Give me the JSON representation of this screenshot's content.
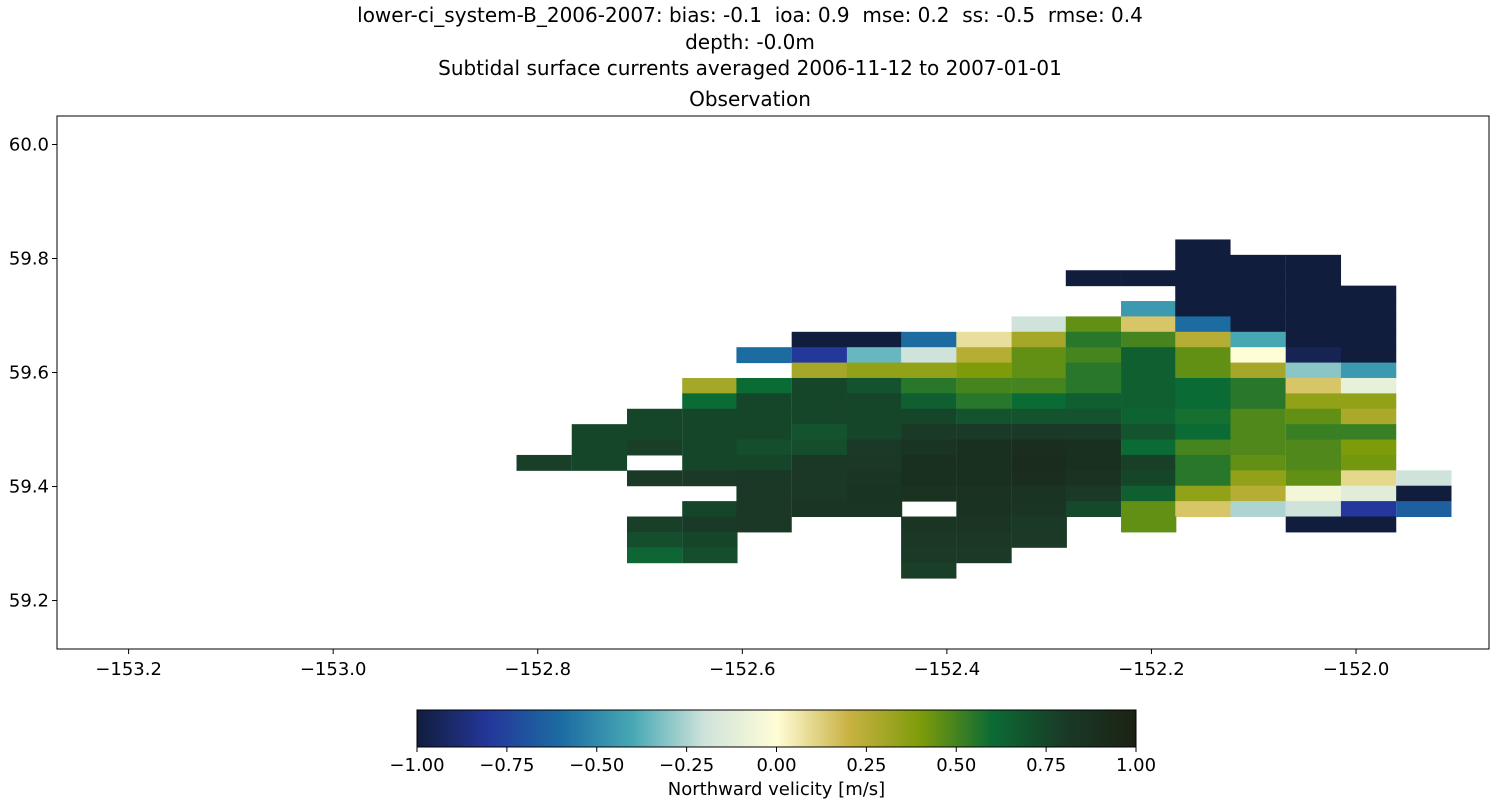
{
  "title": {
    "line1": "lower-ci_system-B_2006-2007: bias: -0.1  ioa: 0.9  mse: 0.2  ss: -0.5  rmse: 0.4",
    "line2": "depth: -0.0m",
    "line3": "Subtidal surface currents averaged 2006-11-12 to 2007-01-01",
    "subplot": "Observation"
  },
  "chart_data": {
    "type": "heatmap",
    "title": "Observation",
    "xlabel": "",
    "ylabel": "",
    "xlim": [
      -153.27,
      -151.87
    ],
    "ylim": [
      59.115,
      60.05
    ],
    "x_ticks": [
      -153.2,
      -153.0,
      -152.8,
      -152.6,
      -152.4,
      -152.2,
      -152.0
    ],
    "x_tick_labels": [
      "−153.2",
      "−153.0",
      "−152.8",
      "−152.6",
      "−152.4",
      "−152.2",
      "−152.0"
    ],
    "y_ticks": [
      59.2,
      59.4,
      59.6,
      59.8,
      60.0
    ],
    "y_tick_labels": [
      "59.2",
      "59.4",
      "59.6",
      "59.8",
      "60.0"
    ],
    "cell_width_deg": 0.0535,
    "cell_height_deg": 0.02685,
    "colorbar": {
      "label": "Northward velicity [m/s]",
      "vmin": -1.0,
      "vmax": 1.0,
      "ticks": [
        -1.0,
        -0.75,
        -0.5,
        -0.25,
        0.0,
        0.25,
        0.5,
        0.75,
        1.0
      ],
      "tick_labels": [
        "−1.00",
        "−0.75",
        "−0.50",
        "−0.25",
        "0.00",
        "0.25",
        "0.50",
        "0.75",
        "1.00"
      ],
      "colormap": "delta",
      "stops": [
        "#111d3d",
        "#24379a",
        "#1c6ca2",
        "#47a8b4",
        "#cfe3da",
        "#fffdd7",
        "#c9b243",
        "#7e9c0a",
        "#0b6b34",
        "#1a3a27",
        "#1b2214"
      ]
    },
    "rows": [
      {
        "lat": 59.82,
        "cells": [
          {
            "lon": -152.15,
            "v": -1.0
          }
        ]
      },
      {
        "lat": 59.793,
        "cells": [
          {
            "lon": -152.15,
            "v": -1.0
          },
          {
            "lon": -152.096,
            "v": -1.0
          },
          {
            "lon": -152.042,
            "v": -1.0
          }
        ]
      },
      {
        "lat": 59.766,
        "cells": [
          {
            "lon": -152.257,
            "v": -1.0
          },
          {
            "lon": -152.203,
            "v": -1.0
          },
          {
            "lon": -152.15,
            "v": -1.0
          },
          {
            "lon": -152.096,
            "v": -1.0
          },
          {
            "lon": -152.042,
            "v": -1.0
          }
        ]
      },
      {
        "lat": 59.739,
        "cells": [
          {
            "lon": -152.15,
            "v": -1.0
          },
          {
            "lon": -152.096,
            "v": -1.0
          },
          {
            "lon": -152.042,
            "v": -1.0
          },
          {
            "lon": -151.988,
            "v": -1.0
          }
        ]
      },
      {
        "lat": 59.712,
        "cells": [
          {
            "lon": -152.203,
            "v": -0.45
          },
          {
            "lon": -152.15,
            "v": -1.0
          },
          {
            "lon": -152.096,
            "v": -1.0
          },
          {
            "lon": -152.042,
            "v": -1.0
          },
          {
            "lon": -151.988,
            "v": -1.0
          }
        ]
      },
      {
        "lat": 59.685,
        "cells": [
          {
            "lon": -152.31,
            "v": -0.2
          },
          {
            "lon": -152.257,
            "v": 0.45
          },
          {
            "lon": -152.203,
            "v": 0.15
          },
          {
            "lon": -152.15,
            "v": -0.6
          },
          {
            "lon": -152.096,
            "v": -1.0
          },
          {
            "lon": -152.042,
            "v": -1.0
          },
          {
            "lon": -151.988,
            "v": -1.0
          }
        ]
      },
      {
        "lat": 59.658,
        "cells": [
          {
            "lon": -152.525,
            "v": -1.0
          },
          {
            "lon": -152.471,
            "v": -1.0
          },
          {
            "lon": -152.418,
            "v": -0.6
          },
          {
            "lon": -152.364,
            "v": 0.08
          },
          {
            "lon": -152.31,
            "v": 0.3
          },
          {
            "lon": -152.257,
            "v": 0.55
          },
          {
            "lon": -152.203,
            "v": 0.5
          },
          {
            "lon": -152.15,
            "v": 0.25
          },
          {
            "lon": -152.096,
            "v": -0.4
          },
          {
            "lon": -152.042,
            "v": -1.0
          },
          {
            "lon": -151.988,
            "v": -1.0
          }
        ]
      },
      {
        "lat": 59.631,
        "cells": [
          {
            "lon": -152.579,
            "v": -0.6
          },
          {
            "lon": -152.525,
            "v": -0.8
          },
          {
            "lon": -152.471,
            "v": -0.35
          },
          {
            "lon": -152.418,
            "v": -0.2
          },
          {
            "lon": -152.364,
            "v": 0.25
          },
          {
            "lon": -152.31,
            "v": 0.45
          },
          {
            "lon": -152.257,
            "v": 0.5
          },
          {
            "lon": -152.203,
            "v": 0.65
          },
          {
            "lon": -152.15,
            "v": 0.45
          },
          {
            "lon": -152.096,
            "v": 0.0
          },
          {
            "lon": -152.042,
            "v": -0.95
          },
          {
            "lon": -151.988,
            "v": -1.0
          }
        ]
      },
      {
        "lat": 59.604,
        "cells": [
          {
            "lon": -152.525,
            "v": 0.3
          },
          {
            "lon": -152.471,
            "v": 0.35
          },
          {
            "lon": -152.418,
            "v": 0.35
          },
          {
            "lon": -152.364,
            "v": 0.4
          },
          {
            "lon": -152.31,
            "v": 0.45
          },
          {
            "lon": -152.257,
            "v": 0.55
          },
          {
            "lon": -152.203,
            "v": 0.65
          },
          {
            "lon": -152.15,
            "v": 0.45
          },
          {
            "lon": -152.096,
            "v": 0.3
          },
          {
            "lon": -152.042,
            "v": -0.3
          },
          {
            "lon": -151.988,
            "v": -0.45
          }
        ]
      },
      {
        "lat": 59.577,
        "cells": [
          {
            "lon": -152.632,
            "v": 0.3
          },
          {
            "lon": -152.579,
            "v": 0.6
          },
          {
            "lon": -152.525,
            "v": 0.75
          },
          {
            "lon": -152.471,
            "v": 0.7
          },
          {
            "lon": -152.418,
            "v": 0.55
          },
          {
            "lon": -152.364,
            "v": 0.5
          },
          {
            "lon": -152.31,
            "v": 0.5
          },
          {
            "lon": -152.257,
            "v": 0.55
          },
          {
            "lon": -152.203,
            "v": 0.65
          },
          {
            "lon": -152.15,
            "v": 0.6
          },
          {
            "lon": -152.096,
            "v": 0.55
          },
          {
            "lon": -152.042,
            "v": 0.15
          },
          {
            "lon": -151.988,
            "v": -0.1
          }
        ]
      },
      {
        "lat": 59.55,
        "cells": [
          {
            "lon": -152.632,
            "v": 0.6
          },
          {
            "lon": -152.579,
            "v": 0.75
          },
          {
            "lon": -152.525,
            "v": 0.75
          },
          {
            "lon": -152.471,
            "v": 0.75
          },
          {
            "lon": -152.418,
            "v": 0.65
          },
          {
            "lon": -152.364,
            "v": 0.55
          },
          {
            "lon": -152.31,
            "v": 0.6
          },
          {
            "lon": -152.257,
            "v": 0.65
          },
          {
            "lon": -152.203,
            "v": 0.65
          },
          {
            "lon": -152.15,
            "v": 0.6
          },
          {
            "lon": -152.096,
            "v": 0.55
          },
          {
            "lon": -152.042,
            "v": 0.35
          },
          {
            "lon": -151.988,
            "v": 0.35
          }
        ]
      },
      {
        "lat": 59.523,
        "cells": [
          {
            "lon": -152.686,
            "v": 0.75
          },
          {
            "lon": -152.632,
            "v": 0.75
          },
          {
            "lon": -152.579,
            "v": 0.75
          },
          {
            "lon": -152.525,
            "v": 0.75
          },
          {
            "lon": -152.471,
            "v": 0.75
          },
          {
            "lon": -152.418,
            "v": 0.75
          },
          {
            "lon": -152.364,
            "v": 0.7
          },
          {
            "lon": -152.31,
            "v": 0.7
          },
          {
            "lon": -152.257,
            "v": 0.7
          },
          {
            "lon": -152.203,
            "v": 0.63
          },
          {
            "lon": -152.15,
            "v": 0.58
          },
          {
            "lon": -152.096,
            "v": 0.48
          },
          {
            "lon": -152.042,
            "v": 0.45
          },
          {
            "lon": -151.988,
            "v": 0.28
          }
        ]
      },
      {
        "lat": 59.496,
        "cells": [
          {
            "lon": -152.74,
            "v": 0.75
          },
          {
            "lon": -152.686,
            "v": 0.75
          },
          {
            "lon": -152.632,
            "v": 0.75
          },
          {
            "lon": -152.579,
            "v": 0.75
          },
          {
            "lon": -152.525,
            "v": 0.7
          },
          {
            "lon": -152.471,
            "v": 0.75
          },
          {
            "lon": -152.418,
            "v": 0.8
          },
          {
            "lon": -152.364,
            "v": 0.8
          },
          {
            "lon": -152.31,
            "v": 0.8
          },
          {
            "lon": -152.257,
            "v": 0.8
          },
          {
            "lon": -152.203,
            "v": 0.7
          },
          {
            "lon": -152.15,
            "v": 0.6
          },
          {
            "lon": -152.096,
            "v": 0.48
          },
          {
            "lon": -152.042,
            "v": 0.52
          },
          {
            "lon": -151.988,
            "v": 0.52
          }
        ]
      },
      {
        "lat": 59.469,
        "cells": [
          {
            "lon": -152.74,
            "v": 0.75
          },
          {
            "lon": -152.686,
            "v": 0.78
          },
          {
            "lon": -152.632,
            "v": 0.75
          },
          {
            "lon": -152.579,
            "v": 0.72
          },
          {
            "lon": -152.525,
            "v": 0.72
          },
          {
            "lon": -152.471,
            "v": 0.8
          },
          {
            "lon": -152.418,
            "v": 0.85
          },
          {
            "lon": -152.364,
            "v": 0.88
          },
          {
            "lon": -152.31,
            "v": 0.9
          },
          {
            "lon": -152.257,
            "v": 0.88
          },
          {
            "lon": -152.203,
            "v": 0.6
          },
          {
            "lon": -152.15,
            "v": 0.5
          },
          {
            "lon": -152.096,
            "v": 0.48
          },
          {
            "lon": -152.042,
            "v": 0.48
          },
          {
            "lon": -151.988,
            "v": 0.4
          }
        ]
      },
      {
        "lat": 59.442,
        "cells": [
          {
            "lon": -152.794,
            "v": 0.78
          },
          {
            "lon": -152.74,
            "v": 0.75
          },
          {
            "lon": -152.632,
            "v": 0.75
          },
          {
            "lon": -152.579,
            "v": 0.75
          },
          {
            "lon": -152.525,
            "v": 0.82
          },
          {
            "lon": -152.471,
            "v": 0.82
          },
          {
            "lon": -152.418,
            "v": 0.88
          },
          {
            "lon": -152.364,
            "v": 0.88
          },
          {
            "lon": -152.31,
            "v": 0.92
          },
          {
            "lon": -152.257,
            "v": 0.88
          },
          {
            "lon": -152.203,
            "v": 0.78
          },
          {
            "lon": -152.15,
            "v": 0.55
          },
          {
            "lon": -152.096,
            "v": 0.45
          },
          {
            "lon": -152.042,
            "v": 0.48
          },
          {
            "lon": -151.988,
            "v": 0.42
          }
        ]
      },
      {
        "lat": 59.415,
        "cells": [
          {
            "lon": -152.686,
            "v": 0.8
          },
          {
            "lon": -152.632,
            "v": 0.8
          },
          {
            "lon": -152.579,
            "v": 0.82
          },
          {
            "lon": -152.525,
            "v": 0.82
          },
          {
            "lon": -152.471,
            "v": 0.84
          },
          {
            "lon": -152.418,
            "v": 0.88
          },
          {
            "lon": -152.364,
            "v": 0.88
          },
          {
            "lon": -152.31,
            "v": 0.9
          },
          {
            "lon": -152.257,
            "v": 0.86
          },
          {
            "lon": -152.203,
            "v": 0.75
          },
          {
            "lon": -152.15,
            "v": 0.55
          },
          {
            "lon": -152.096,
            "v": 0.35
          },
          {
            "lon": -152.042,
            "v": 0.45
          },
          {
            "lon": -151.988,
            "v": 0.1
          },
          {
            "lon": -151.934,
            "v": -0.2
          }
        ]
      },
      {
        "lat": 59.388,
        "cells": [
          {
            "lon": -152.579,
            "v": 0.82
          },
          {
            "lon": -152.525,
            "v": 0.82
          },
          {
            "lon": -152.471,
            "v": 0.85
          },
          {
            "lon": -152.418,
            "v": 0.86
          },
          {
            "lon": -152.364,
            "v": 0.86
          },
          {
            "lon": -152.31,
            "v": 0.85
          },
          {
            "lon": -152.257,
            "v": 0.8
          },
          {
            "lon": -152.203,
            "v": 0.65
          },
          {
            "lon": -152.15,
            "v": 0.35
          },
          {
            "lon": -152.096,
            "v": 0.25
          },
          {
            "lon": -152.042,
            "v": -0.05
          },
          {
            "lon": -151.988,
            "v": -0.12
          },
          {
            "lon": -151.934,
            "v": -1.0
          }
        ]
      },
      {
        "lat": 59.361,
        "cells": [
          {
            "lon": -152.632,
            "v": 0.75
          },
          {
            "lon": -152.579,
            "v": 0.82
          },
          {
            "lon": -152.525,
            "v": 0.84
          },
          {
            "lon": -152.471,
            "v": 0.84
          },
          {
            "lon": -152.364,
            "v": 0.86
          },
          {
            "lon": -152.31,
            "v": 0.84
          },
          {
            "lon": -152.257,
            "v": 0.74
          },
          {
            "lon": -152.203,
            "v": 0.45
          },
          {
            "lon": -152.15,
            "v": 0.15
          },
          {
            "lon": -152.096,
            "v": -0.25
          },
          {
            "lon": -152.042,
            "v": -0.2
          },
          {
            "lon": -151.988,
            "v": -0.8
          },
          {
            "lon": -151.934,
            "v": -0.65
          }
        ]
      },
      {
        "lat": 59.334,
        "cells": [
          {
            "lon": -152.686,
            "v": 0.78
          },
          {
            "lon": -152.632,
            "v": 0.8
          },
          {
            "lon": -152.579,
            "v": 0.82
          },
          {
            "lon": -152.418,
            "v": 0.84
          },
          {
            "lon": -152.364,
            "v": 0.84
          },
          {
            "lon": -152.31,
            "v": 0.8
          },
          {
            "lon": -152.203,
            "v": 0.45
          },
          {
            "lon": -152.042,
            "v": -1.0
          },
          {
            "lon": -151.988,
            "v": -1.0
          }
        ]
      },
      {
        "lat": 59.307,
        "cells": [
          {
            "lon": -152.686,
            "v": 0.72
          },
          {
            "lon": -152.632,
            "v": 0.75
          },
          {
            "lon": -152.418,
            "v": 0.82
          },
          {
            "lon": -152.364,
            "v": 0.82
          },
          {
            "lon": -152.31,
            "v": 0.8
          }
        ]
      },
      {
        "lat": 59.28,
        "cells": [
          {
            "lon": -152.686,
            "v": 0.62
          },
          {
            "lon": -152.632,
            "v": 0.72
          },
          {
            "lon": -152.418,
            "v": 0.8
          },
          {
            "lon": -152.364,
            "v": 0.8
          }
        ]
      },
      {
        "lat": 59.253,
        "cells": [
          {
            "lon": -152.418,
            "v": 0.78
          }
        ]
      }
    ]
  }
}
